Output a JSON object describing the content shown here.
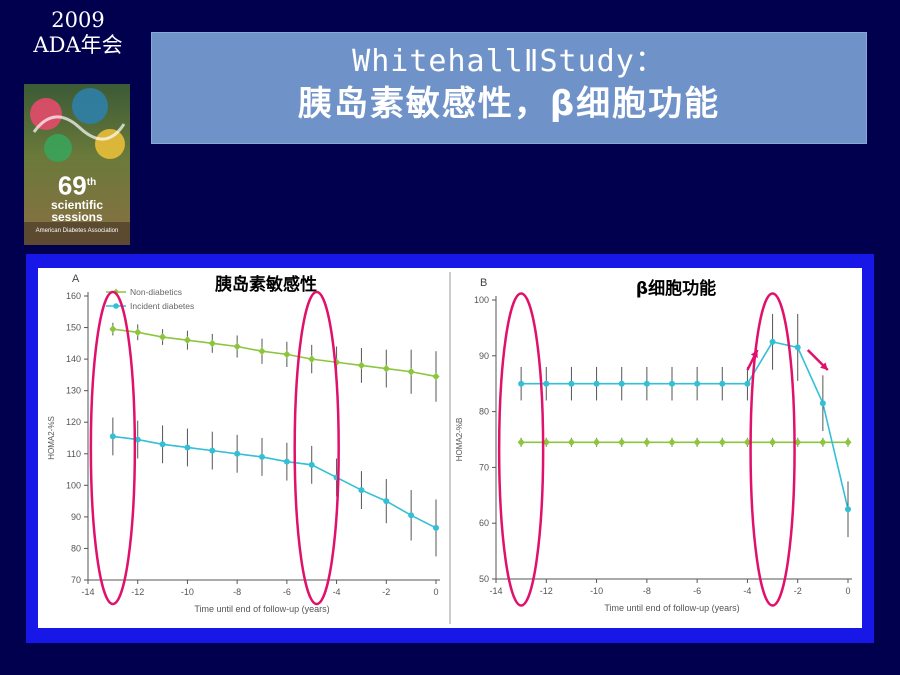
{
  "corner": {
    "year": "2009",
    "conference": "ADA年会"
  },
  "logo": {
    "number": "69",
    "superscript": "th",
    "line1": "scientific",
    "line2": "sessions",
    "org": "American Diabetes Association"
  },
  "title": {
    "line1": "WhitehallⅡStudy：",
    "line2": "胰岛素敏感性，β细胞功能"
  },
  "colors": {
    "background": "#00004e",
    "title_bg": "#6f93c9",
    "chart_border": "#1717e8",
    "non_diabetic": "#8cc63f",
    "incident_diabetes": "#33bfd6",
    "highlight": "#e0106b"
  },
  "chart_data": [
    {
      "type": "line",
      "panel_letter": "A",
      "overlay_title": "胰岛素敏感性",
      "xlabel": "Time until end of follow-up (years)",
      "ylabel": "HOMA2-%S",
      "xlim": [
        -14,
        0
      ],
      "ylim": [
        70,
        160
      ],
      "x_ticks": [
        -14,
        -12,
        -10,
        -8,
        -6,
        -4,
        -2,
        0
      ],
      "y_ticks": [
        70,
        80,
        90,
        100,
        110,
        120,
        130,
        140,
        150,
        160
      ],
      "legend": "top-left",
      "series": [
        {
          "name": "Non-diabetics",
          "x": [
            -13,
            -12,
            -11,
            -10,
            -9,
            -8,
            -7,
            -6,
            -5,
            -4,
            -3,
            -2,
            -1,
            0
          ],
          "y": [
            149.5,
            148.5,
            147,
            146,
            145,
            144,
            142.5,
            141.5,
            140,
            139,
            138,
            137,
            136,
            134.5
          ],
          "err": [
            2,
            2.5,
            2.5,
            3,
            3,
            3.5,
            4,
            4,
            4.5,
            5,
            5.5,
            6,
            7,
            8
          ]
        },
        {
          "name": "Incident diabetes",
          "x": [
            -13,
            -12,
            -11,
            -10,
            -9,
            -8,
            -7,
            -6,
            -5,
            -4,
            -3,
            -2,
            -1,
            0
          ],
          "y": [
            115.5,
            114.5,
            113,
            112,
            111,
            110,
            109,
            107.5,
            106.5,
            102.5,
            98.5,
            95,
            90.5,
            86.5
          ],
          "err": [
            6,
            6,
            6,
            6,
            6,
            6,
            6,
            6,
            6,
            6,
            6,
            7,
            8,
            9
          ]
        }
      ],
      "highlights": [
        -13,
        -4.8
      ]
    },
    {
      "type": "line",
      "panel_letter": "B",
      "overlay_title": "β细胞功能",
      "xlabel": "Time until end of follow-up (years)",
      "ylabel": "HOMA2-%B",
      "xlim": [
        -14,
        0
      ],
      "ylim": [
        50,
        100
      ],
      "x_ticks": [
        -14,
        -12,
        -10,
        -8,
        -6,
        -4,
        -2,
        0
      ],
      "y_ticks": [
        50,
        60,
        70,
        80,
        90,
        100
      ],
      "series": [
        {
          "name": "Non-diabetics",
          "x": [
            -13,
            -12,
            -11,
            -10,
            -9,
            -8,
            -7,
            -6,
            -5,
            -4,
            -3,
            -2,
            -1,
            0
          ],
          "y": [
            74.5,
            74.5,
            74.5,
            74.5,
            74.5,
            74.5,
            74.5,
            74.5,
            74.5,
            74.5,
            74.5,
            74.5,
            74.5,
            74.5
          ],
          "err": [
            0.8,
            0.8,
            0.8,
            0.8,
            0.8,
            0.8,
            0.8,
            0.8,
            0.8,
            0.8,
            0.8,
            0.8,
            0.8,
            0.8
          ]
        },
        {
          "name": "Incident diabetes",
          "x": [
            -13,
            -12,
            -11,
            -10,
            -9,
            -8,
            -7,
            -6,
            -5,
            -4,
            -3,
            -2,
            -1,
            0
          ],
          "y": [
            85,
            85,
            85,
            85,
            85,
            85,
            85,
            85,
            85,
            85,
            92.5,
            91.5,
            81.5,
            62.5
          ],
          "err": [
            3,
            3,
            3,
            3,
            3,
            3,
            3,
            3,
            3,
            3,
            5,
            6,
            5,
            5
          ]
        }
      ],
      "highlights": [
        -13,
        -3
      ],
      "arrows": [
        "up",
        "down"
      ]
    }
  ]
}
